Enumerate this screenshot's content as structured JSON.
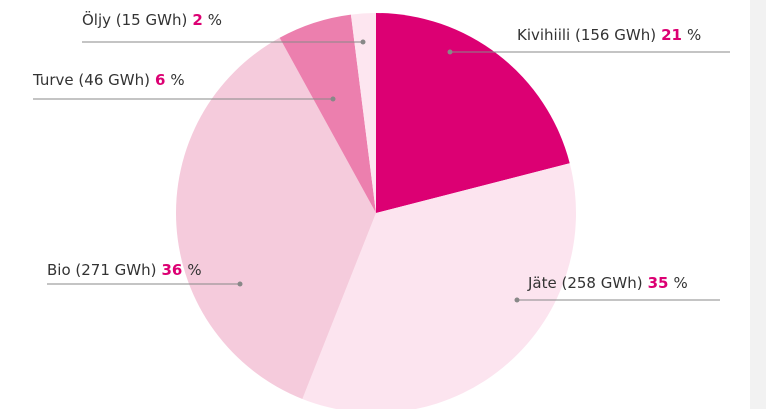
{
  "chart_data": {
    "type": "pie",
    "labels": [
      "Kivihiili (156 GWh)",
      "Jäte (258 GWh)",
      "Bio (271 GWh)",
      "Turve (46 GWh)",
      "Öljy (15 GWh)"
    ],
    "values": [
      21,
      35,
      36,
      6,
      2
    ],
    "unit": "%",
    "colors": [
      "#dc0073",
      "#fce4ef",
      "#f5cbdc",
      "#ec7fae",
      "#fde6f0"
    ],
    "value_color": "#dc0073"
  }
}
